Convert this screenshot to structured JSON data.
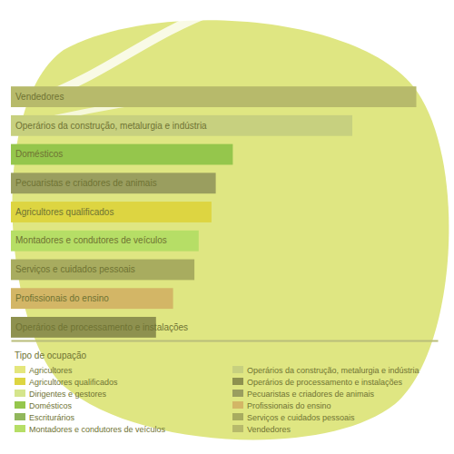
{
  "chart_data": {
    "type": "bar",
    "orientation": "horizontal",
    "grid": false,
    "legend": "bottom",
    "tick_labels": "y",
    "stacked": false,
    "legend_title": "Tipo de ocupação",
    "categories": [
      "Vendedores",
      "Operários da construção, metalurgia e indústria",
      "Domésticos",
      "Pecuaristas e criadores de animais",
      "Agricultores qualificados",
      "Montadores e condutores de veículos",
      "Serviços e cuidados pessoais",
      "Profissionais do ensino",
      "Operários de processamento e instalações"
    ],
    "xlim": [
      0,
      100
    ],
    "series": [
      {
        "name": "Agricultores",
        "color": "#e4e67c",
        "values": [
          null,
          null,
          null,
          null,
          null,
          null,
          null,
          null,
          null
        ]
      },
      {
        "name": "Agricultores qualificados",
        "color": "#ddd541",
        "values": [
          null,
          null,
          null,
          null,
          47,
          null,
          null,
          null,
          null
        ]
      },
      {
        "name": "Dirigentes e gestores",
        "color": "#d5e58c",
        "values": [
          null,
          null,
          null,
          null,
          null,
          null,
          null,
          null,
          null
        ]
      },
      {
        "name": "Domésticos",
        "color": "#95c64c",
        "values": [
          null,
          null,
          52,
          null,
          null,
          null,
          null,
          null,
          null
        ]
      },
      {
        "name": "Escriturários",
        "color": "#91b75c",
        "values": [
          null,
          null,
          null,
          null,
          null,
          null,
          null,
          null,
          null
        ]
      },
      {
        "name": "Montadores e condutores de veículos",
        "color": "#b6de66",
        "values": [
          null,
          null,
          null,
          null,
          null,
          44,
          null,
          null,
          null
        ]
      },
      {
        "name": "Operários da construção, metalurgia e indústria",
        "color": "#c7d07f",
        "values": [
          null,
          80,
          null,
          null,
          null,
          null,
          null,
          null,
          null
        ]
      },
      {
        "name": "Operários de processamento e instalações",
        "color": "#8e914f",
        "values": [
          null,
          null,
          null,
          null,
          null,
          null,
          null,
          null,
          34
        ]
      },
      {
        "name": "Pecuaristas e criadores de animais",
        "color": "#9a9e5f",
        "values": [
          null,
          null,
          null,
          48,
          null,
          null,
          null,
          null,
          null
        ]
      },
      {
        "name": "Profissionais do ensino",
        "color": "#d3b666",
        "values": [
          null,
          null,
          null,
          null,
          null,
          null,
          null,
          38,
          null
        ]
      },
      {
        "name": "Serviços e cuidados pessoais",
        "color": "#a8ac5f",
        "values": [
          null,
          null,
          null,
          null,
          null,
          null,
          43,
          null,
          null
        ]
      },
      {
        "name": "Vendedores",
        "color": "#b7ba6b",
        "values": [
          95,
          null,
          null,
          null,
          null,
          null,
          null,
          null,
          null
        ]
      }
    ]
  }
}
